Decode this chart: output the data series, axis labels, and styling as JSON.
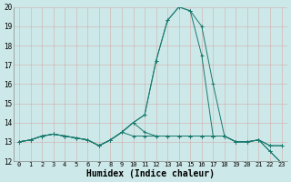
{
  "xlabel": "Humidex (Indice chaleur)",
  "x_values": [
    0,
    1,
    2,
    3,
    4,
    5,
    6,
    7,
    8,
    9,
    10,
    11,
    12,
    13,
    14,
    15,
    16,
    17,
    18,
    19,
    20,
    21,
    22,
    23
  ],
  "lines": [
    [
      13.0,
      13.1,
      13.3,
      13.4,
      13.3,
      13.2,
      13.1,
      12.8,
      13.1,
      13.5,
      14.0,
      14.4,
      17.2,
      19.3,
      20.0,
      19.8,
      19.0,
      16.0,
      13.3,
      13.0,
      13.0,
      13.1,
      12.8,
      12.8
    ],
    [
      13.0,
      13.1,
      13.3,
      13.4,
      13.3,
      13.2,
      13.1,
      12.8,
      13.1,
      13.5,
      14.0,
      14.4,
      17.2,
      19.3,
      20.0,
      19.8,
      17.5,
      13.3,
      13.3,
      13.0,
      13.0,
      13.1,
      12.8,
      12.8
    ],
    [
      13.0,
      13.1,
      13.3,
      13.4,
      13.3,
      13.2,
      13.1,
      12.8,
      13.1,
      13.5,
      14.0,
      13.5,
      13.3,
      13.3,
      13.3,
      13.3,
      13.3,
      13.3,
      13.3,
      13.0,
      13.0,
      13.1,
      12.5,
      11.9
    ],
    [
      13.0,
      13.1,
      13.3,
      13.4,
      13.3,
      13.2,
      13.1,
      12.8,
      13.1,
      13.5,
      13.3,
      13.3,
      13.3,
      13.3,
      13.3,
      13.3,
      13.3,
      13.3,
      13.3,
      13.0,
      13.0,
      13.1,
      12.5,
      11.9
    ]
  ],
  "line_color": "#1a7a6e",
  "bg_color": "#cde8e8",
  "grid_color": "#b8d0d0",
  "ylim": [
    12,
    20
  ],
  "xlim_min": -0.5,
  "xlim_max": 23.5,
  "yticks": [
    12,
    13,
    14,
    15,
    16,
    17,
    18,
    19,
    20
  ],
  "xticks": [
    0,
    1,
    2,
    3,
    4,
    5,
    6,
    7,
    8,
    9,
    10,
    11,
    12,
    13,
    14,
    15,
    16,
    17,
    18,
    19,
    20,
    21,
    22,
    23
  ],
  "marker": "+"
}
